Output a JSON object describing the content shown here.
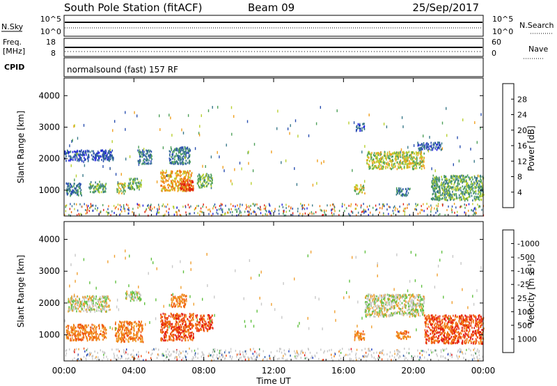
{
  "header": {
    "station": "South Pole Station (fitACF)",
    "beam": "Beam 09",
    "date": "25/Sep/2017"
  },
  "top_panels": {
    "nsky_label": "N.Sky",
    "nsky_ticks_left": [
      "10^5",
      "10^0"
    ],
    "nsky_ticks_right": [
      "10^5",
      "10^0"
    ],
    "nsearch_label": "N.Search",
    "freq_label_1": "Freq.",
    "freq_label_2": "[MHz]",
    "freq_ticks": [
      "18",
      "8"
    ],
    "nave_ticks": [
      "60",
      "0"
    ],
    "nave_label": "Nave",
    "cpid_label": "CPID",
    "cpid_text": "normalsound (fast) 157 RF"
  },
  "x_axis": {
    "title": "Time UT",
    "ticks": [
      "00:00",
      "04:00",
      "08:00",
      "12:00",
      "16:00",
      "20:00",
      "00:00"
    ]
  },
  "chart_data": [
    {
      "type": "heatmap",
      "name": "power",
      "xlabel": "Time UT",
      "ylabel": "Slant Range [km]",
      "xlim": [
        0,
        24
      ],
      "ylim": [
        180,
        4560
      ],
      "y_ticks": [
        1000,
        2000,
        3000,
        4000
      ],
      "colorbar_label": "Power [dB]",
      "colorbar_ticks": [
        "4",
        "8",
        "12",
        "16",
        "20",
        "24",
        "28"
      ],
      "colorbar_colors": [
        "#1e1ee0",
        "#2a4fb0",
        "#3a7a8a",
        "#4ea05a",
        "#b8d030",
        "#f0a020",
        "#f07010",
        "#e02010"
      ],
      "regions": [
        {
          "t0": 0.0,
          "t1": 2.8,
          "r0": 1950,
          "r1": 2300,
          "level": 1
        },
        {
          "t0": 0.1,
          "t1": 1.0,
          "r0": 850,
          "r1": 1250,
          "level": 2
        },
        {
          "t0": 1.4,
          "t1": 2.4,
          "r0": 950,
          "r1": 1300,
          "level": 3
        },
        {
          "t0": 3.0,
          "t1": 3.5,
          "r0": 900,
          "r1": 1250,
          "level": 4
        },
        {
          "t0": 3.6,
          "t1": 4.4,
          "r0": 1050,
          "r1": 1400,
          "level": 3
        },
        {
          "t0": 4.2,
          "t1": 5.0,
          "r0": 1850,
          "r1": 2300,
          "level": 2
        },
        {
          "t0": 5.5,
          "t1": 7.3,
          "r0": 1000,
          "r1": 1650,
          "level": 5
        },
        {
          "t0": 6.6,
          "t1": 7.4,
          "r0": 1000,
          "r1": 1350,
          "level": 7
        },
        {
          "t0": 6.0,
          "t1": 7.2,
          "r0": 1850,
          "r1": 2400,
          "level": 2
        },
        {
          "t0": 7.6,
          "t1": 8.5,
          "r0": 1100,
          "r1": 1550,
          "level": 3
        },
        {
          "t0": 17.3,
          "t1": 20.6,
          "r0": 1700,
          "r1": 2250,
          "level": 4
        },
        {
          "t0": 16.7,
          "t1": 17.2,
          "r0": 2900,
          "r1": 3150,
          "level": 1
        },
        {
          "t0": 20.2,
          "t1": 21.6,
          "r0": 2300,
          "r1": 2550,
          "level": 1
        },
        {
          "t0": 16.6,
          "t1": 17.2,
          "r0": 900,
          "r1": 1200,
          "level": 4
        },
        {
          "t0": 21.0,
          "t1": 24.0,
          "r0": 700,
          "r1": 1500,
          "level": 3
        },
        {
          "t0": 19.0,
          "t1": 19.8,
          "r0": 850,
          "r1": 1100,
          "level": 2
        }
      ]
    },
    {
      "type": "heatmap",
      "name": "velocity",
      "xlabel": "Time UT",
      "ylabel": "Slant Range [km]",
      "xlim": [
        0,
        24
      ],
      "ylim": [
        180,
        4560
      ],
      "y_ticks": [
        1000,
        2000,
        3000,
        4000
      ],
      "colorbar_label": "Velocity [m s⁻¹]",
      "colorbar_ticks": [
        "1000",
        "500",
        "100",
        "25",
        "-25",
        "-100",
        "-500",
        "-1000"
      ],
      "colorbar_colors": [
        "#2040c0",
        "#2a5aa8",
        "#3a8a50",
        "#60c040",
        "#c8c8c8",
        "#f0a030",
        "#f08010",
        "#f05010",
        "#e01010"
      ],
      "regions": [
        {
          "t0": 0.2,
          "t1": 2.6,
          "r0": 1750,
          "r1": 2250,
          "level": 4
        },
        {
          "t0": 0.1,
          "t1": 2.4,
          "r0": 850,
          "r1": 1350,
          "level": 6
        },
        {
          "t0": 2.9,
          "t1": 4.5,
          "r0": 800,
          "r1": 1450,
          "level": 6
        },
        {
          "t0": 3.5,
          "t1": 4.4,
          "r0": 2100,
          "r1": 2400,
          "level": 4
        },
        {
          "t0": 5.5,
          "t1": 7.4,
          "r0": 850,
          "r1": 1700,
          "level": 7
        },
        {
          "t0": 6.1,
          "t1": 7.0,
          "r0": 1900,
          "r1": 2300,
          "level": 6
        },
        {
          "t0": 7.5,
          "t1": 8.5,
          "r0": 1150,
          "r1": 1650,
          "level": 7
        },
        {
          "t0": 17.2,
          "t1": 20.6,
          "r0": 1600,
          "r1": 2300,
          "level": 4
        },
        {
          "t0": 16.6,
          "t1": 17.2,
          "r0": 850,
          "r1": 1150,
          "level": 6
        },
        {
          "t0": 20.6,
          "t1": 24.0,
          "r0": 750,
          "r1": 1650,
          "level": 7
        },
        {
          "t0": 19.0,
          "t1": 19.8,
          "r0": 900,
          "r1": 1150,
          "level": 6
        }
      ]
    }
  ]
}
